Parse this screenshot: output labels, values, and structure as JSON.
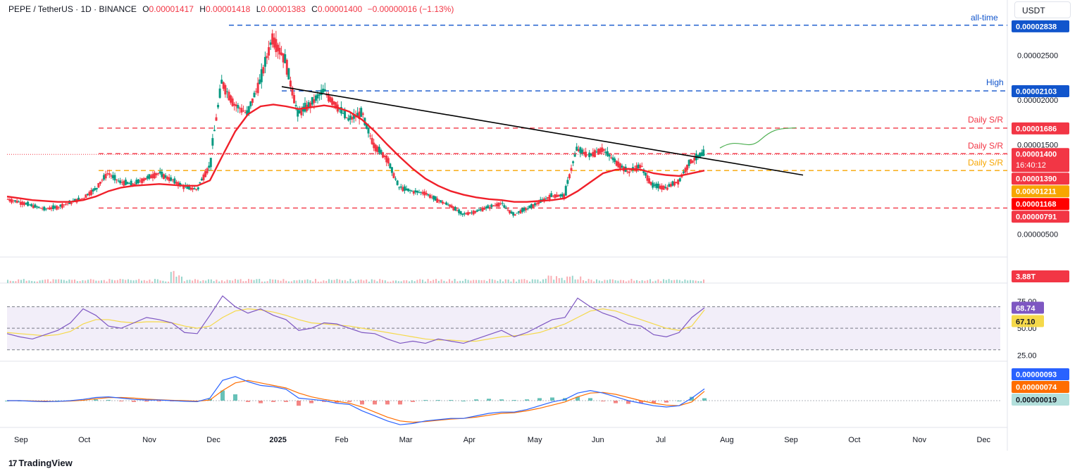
{
  "header": {
    "symbol": "PEPE / TetherUS · 1D · BINANCE",
    "o_label": "O",
    "o_value": "0.00001417",
    "h_label": "H",
    "h_value": "0.00001418",
    "l_label": "L",
    "l_value": "0.00001383",
    "c_label": "C",
    "c_value": "0.00001400",
    "change": "−0.00000016 (−1.13%)"
  },
  "currency_button": "USDT",
  "branding": "TradingView",
  "colors": {
    "up": "#089981",
    "down": "#f23645",
    "ma": "#f0202a",
    "trendline": "#000000",
    "support_red": "#f23645",
    "support_orange": "#f7a600",
    "ath_blue": "#1155cc",
    "rsi": "#7e57c2",
    "rsi_ma": "#f5d94a",
    "macd": "#2962ff",
    "signal": "#ff6d00",
    "projection": "#4caf50"
  },
  "chart_data": {
    "type": "candlestick",
    "symbol": "PEPE/USDT",
    "timeframe": "1D",
    "price_axis": {
      "ticks": [
        "0.00002500",
        "0.00002000",
        "0.00001500",
        "0.00000500"
      ],
      "range": [
        4e-06,
        2.9e-05
      ]
    },
    "x_axis_labels": [
      "Sep",
      "Oct",
      "Nov",
      "Dec",
      "2025",
      "Feb",
      "Mar",
      "Apr",
      "May",
      "Jun",
      "Jul",
      "Aug",
      "Sep",
      "Oct",
      "Nov",
      "Dec"
    ],
    "weekly_closes": [
      8.9e-06,
      8.6e-06,
      8.2e-06,
      7.8e-06,
      8e-06,
      8.5e-06,
      9e-06,
      1e-05,
      1.18e-05,
      1.08e-05,
      1.06e-05,
      1.12e-05,
      1.18e-05,
      1.11e-05,
      1.03e-05,
      1e-05,
      1.25e-05,
      2.2e-05,
      1.95e-05,
      1.85e-05,
      2.2e-05,
      2.7e-05,
      2.45e-05,
      1.85e-05,
      1.95e-05,
      2.1e-05,
      1.95e-05,
      1.78e-05,
      1.85e-05,
      1.5e-05,
      1.35e-05,
      1.02e-05,
      9.8e-06,
      9.6e-06,
      8.8e-06,
      8.2e-06,
      7.2e-06,
      7.5e-06,
      8e-06,
      8.4e-06,
      7.2e-06,
      7.8e-06,
      8.5e-06,
      9.3e-06,
      9.3e-06,
      1.45e-05,
      1.38e-05,
      1.45e-05,
      1.32e-05,
      1.2e-05,
      1.26e-05,
      1.04e-05,
      1.02e-05,
      1.09e-05,
      1.32e-05,
      1.4e-05
    ],
    "moving_average": {
      "name": "MA",
      "values": [
        9.2e-06,
        9e-06,
        8.8e-06,
        8.7e-06,
        8.6e-06,
        8.6e-06,
        8.8e-06,
        9.2e-06,
        9.8e-06,
        1.02e-05,
        1.04e-05,
        1.05e-05,
        1.06e-05,
        1.05e-05,
        1.04e-05,
        1.04e-05,
        1.1e-05,
        1.38e-05,
        1.65e-05,
        1.84e-05,
        1.93e-05,
        1.95e-05,
        1.93e-05,
        1.9e-05,
        1.92e-05,
        1.94e-05,
        1.92e-05,
        1.87e-05,
        1.78e-05,
        1.65e-05,
        1.5e-05,
        1.36e-05,
        1.23e-05,
        1.12e-05,
        1.04e-05,
        9.8e-06,
        9.4e-06,
        9.1e-06,
        8.9e-06,
        8.8e-06,
        8.6e-06,
        8.6e-06,
        8.7e-06,
        8.8e-06,
        9e-06,
        9.8e-06,
        1.08e-05,
        1.18e-05,
        1.22e-05,
        1.23e-05,
        1.22e-05,
        1.18e-05,
        1.16e-05,
        1.15e-05,
        1.18e-05,
        1.211e-05
      ]
    },
    "trendline": {
      "start": {
        "label": "Jan 2025",
        "value": 2.15e-05
      },
      "end": {
        "label": "Sep",
        "value": 1.16e-05
      }
    },
    "levels": [
      {
        "name": "all-time",
        "value": 2.838e-05,
        "price_label": "0.00002838",
        "color": "#1155cc"
      },
      {
        "name": "High",
        "value": 2.103e-05,
        "price_label": "0.00002103",
        "color": "#1155cc"
      },
      {
        "name": "Daily S/R",
        "value": 1.686e-05,
        "price_label": "0.00001686",
        "color": "#f23645"
      },
      {
        "name": "Daily S/R",
        "value": 1.4e-05,
        "price_label": "0.00001400",
        "color": "#f23645"
      },
      {
        "name": "Daily S/R",
        "value": 1.211e-05,
        "price_label": "0.00001211",
        "color": "#f7a600"
      },
      {
        "name": "",
        "value": 7.91e-06,
        "price_label": "0.00000791",
        "color": "#f23645"
      }
    ],
    "price_badges": [
      {
        "text": "0.00001390",
        "color": "#f23645"
      },
      {
        "text": "0.00001211",
        "color": "#f7a600"
      },
      {
        "text": "0.00001168",
        "color": "#ff0000"
      }
    ],
    "countdown": "16:40:12",
    "volume": {
      "last_label": "3.88T",
      "color": "#f23645"
    },
    "rsi": {
      "value_label": "68.74",
      "ma_label": "67.10",
      "levels": [
        "75.00",
        "50.00",
        "25.00"
      ],
      "overbought": 70,
      "oversold": 30,
      "values": [
        45,
        42,
        40,
        44,
        48,
        55,
        68,
        62,
        52,
        50,
        55,
        60,
        58,
        55,
        46,
        45,
        62,
        80,
        70,
        64,
        68,
        62,
        58,
        48,
        50,
        55,
        54,
        50,
        46,
        45,
        40,
        36,
        38,
        36,
        40,
        38,
        36,
        40,
        44,
        48,
        42,
        46,
        52,
        58,
        60,
        78,
        70,
        64,
        60,
        54,
        52,
        44,
        42,
        46,
        60,
        69
      ],
      "ma_values": [
        46,
        45,
        44,
        43,
        44,
        47,
        54,
        58,
        58,
        56,
        55,
        56,
        56,
        55,
        52,
        50,
        52,
        60,
        66,
        68,
        67,
        65,
        62,
        58,
        55,
        54,
        53,
        52,
        50,
        48,
        46,
        44,
        42,
        40,
        39,
        39,
        38,
        38,
        40,
        42,
        43,
        44,
        46,
        50,
        54,
        60,
        66,
        68,
        66,
        62,
        58,
        54,
        50,
        48,
        52,
        67
      ]
    },
    "macd": {
      "macd_label": "0.00000093",
      "signal_label": "0.00000074",
      "histogram_label": "0.00000019",
      "macd_values": [
        0,
        0,
        -0.05,
        -0.08,
        -0.06,
        0,
        0.1,
        0.25,
        0.3,
        0.2,
        0.1,
        0.05,
        0.05,
        0,
        -0.05,
        -0.08,
        0.2,
        1.6,
        1.9,
        1.5,
        1.2,
        1.1,
        0.9,
        0.2,
        0.1,
        0.0,
        -0.2,
        -0.3,
        -0.8,
        -1.2,
        -1.6,
        -1.9,
        -1.8,
        -1.6,
        -1.5,
        -1.4,
        -1.4,
        -1.2,
        -1.0,
        -0.9,
        -0.9,
        -0.7,
        -0.4,
        -0.1,
        0.1,
        0.6,
        0.8,
        0.6,
        0.3,
        0.0,
        -0.2,
        -0.4,
        -0.5,
        -0.4,
        0.2,
        0.93
      ],
      "signal_values": [
        0,
        0,
        -0.02,
        -0.05,
        -0.06,
        -0.03,
        0.03,
        0.15,
        0.24,
        0.25,
        0.2,
        0.12,
        0.07,
        0.03,
        0,
        -0.04,
        0.05,
        0.8,
        1.4,
        1.6,
        1.4,
        1.2,
        1.0,
        0.6,
        0.3,
        0.1,
        -0.05,
        -0.2,
        -0.5,
        -0.9,
        -1.3,
        -1.6,
        -1.7,
        -1.65,
        -1.55,
        -1.45,
        -1.4,
        -1.3,
        -1.15,
        -1.0,
        -0.95,
        -0.8,
        -0.6,
        -0.35,
        -0.1,
        0.3,
        0.6,
        0.65,
        0.5,
        0.25,
        0.0,
        -0.2,
        -0.35,
        -0.4,
        -0.1,
        0.74
      ],
      "unit": "e-6"
    },
    "annotations": [
      "all-time",
      "High",
      "Daily S/R",
      "Daily S/R",
      "Daily S/R"
    ]
  }
}
